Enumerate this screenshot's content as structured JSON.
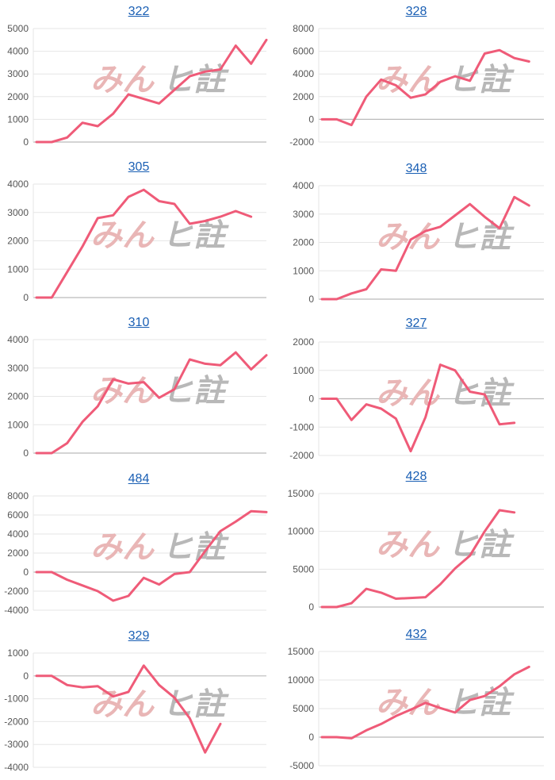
{
  "colors": {
    "line": "#ef5b78",
    "grid": "#e6e6e6",
    "axis": "#bbbbbb",
    "title": "#1a5fb4"
  },
  "watermark": {
    "part1": "みん",
    "part2": "ヒ註"
  },
  "chart_data": [
    {
      "type": "line",
      "title": "322",
      "yticks": [
        0,
        1000,
        2000,
        3000,
        4000,
        5000
      ],
      "ylim": [
        0,
        5000
      ],
      "series": [
        {
          "values": [
            0,
            0,
            200,
            850,
            700,
            1250,
            2100,
            1900,
            1700,
            2300,
            2900,
            3100,
            3200,
            4250,
            3450,
            4500
          ]
        }
      ]
    },
    {
      "type": "line",
      "title": "328",
      "yticks": [
        -2000,
        0,
        2000,
        4000,
        6000,
        8000
      ],
      "ylim": [
        -2000,
        8000
      ],
      "series": [
        {
          "values": [
            0,
            0,
            -500,
            2000,
            3500,
            3000,
            1900,
            2200,
            3300,
            3800,
            3400,
            5800,
            6100,
            5400,
            5100
          ]
        }
      ]
    },
    {
      "type": "line",
      "title": "305",
      "yticks": [
        0,
        1000,
        2000,
        3000,
        4000
      ],
      "ylim": [
        0,
        4000
      ],
      "series": [
        {
          "values": [
            0,
            0,
            900,
            1800,
            2800,
            2900,
            3550,
            3800,
            3400,
            3300,
            2600,
            2700,
            2850,
            3050,
            2850
          ]
        }
      ]
    },
    {
      "type": "line",
      "title": "348",
      "yticks": [
        0,
        1000,
        2000,
        3000,
        4000
      ],
      "ylim": [
        0,
        4000
      ],
      "series": [
        {
          "values": [
            0,
            0,
            200,
            350,
            1050,
            1000,
            2100,
            2400,
            2550,
            2950,
            3350,
            2900,
            2500,
            3600,
            3300
          ]
        }
      ]
    },
    {
      "type": "line",
      "title": "310",
      "yticks": [
        0,
        1000,
        2000,
        3000,
        4000
      ],
      "ylim": [
        0,
        4000
      ],
      "series": [
        {
          "values": [
            0,
            0,
            350,
            1100,
            1650,
            2600,
            2450,
            2500,
            1950,
            2250,
            3300,
            3150,
            3100,
            3550,
            2950,
            3450
          ]
        }
      ]
    },
    {
      "type": "line",
      "title": "327",
      "yticks": [
        -2000,
        -1000,
        0,
        1000,
        2000
      ],
      "ylim": [
        -2000,
        2000
      ],
      "series": [
        {
          "values": [
            0,
            0,
            -750,
            -200,
            -350,
            -700,
            -1850,
            -650,
            1200,
            1000,
            250,
            150,
            -900,
            -850
          ]
        }
      ]
    },
    {
      "type": "line",
      "title": "484",
      "yticks": [
        -4000,
        -2000,
        0,
        2000,
        4000,
        6000,
        8000
      ],
      "ylim": [
        -4000,
        8000
      ],
      "series": [
        {
          "values": [
            0,
            0,
            -800,
            -1400,
            -2000,
            -3000,
            -2500,
            -600,
            -1300,
            -200,
            0,
            2200,
            4300,
            5300,
            6400,
            6300
          ]
        }
      ]
    },
    {
      "type": "line",
      "title": "428",
      "yticks": [
        0,
        5000,
        10000,
        15000
      ],
      "ylim": [
        0,
        15000
      ],
      "series": [
        {
          "values": [
            0,
            0,
            500,
            2400,
            1900,
            1100,
            1200,
            1300,
            3000,
            5100,
            6800,
            10000,
            12800,
            12500
          ]
        }
      ]
    },
    {
      "type": "line",
      "title": "329",
      "yticks": [
        -4000,
        -3000,
        -2000,
        -1000,
        0,
        1000
      ],
      "ylim": [
        -4000,
        1000
      ],
      "series": [
        {
          "values": [
            0,
            0,
            -400,
            -500,
            -450,
            -900,
            -700,
            450,
            -400,
            -950,
            -1850,
            -3350,
            -2100
          ]
        }
      ]
    },
    {
      "type": "line",
      "title": "432",
      "yticks": [
        -5000,
        0,
        5000,
        10000,
        15000
      ],
      "ylim": [
        -5000,
        15000
      ],
      "series": [
        {
          "values": [
            0,
            0,
            -200,
            1200,
            2300,
            3700,
            4800,
            6000,
            5100,
            4300,
            6500,
            7200,
            8900,
            11000,
            12300
          ]
        }
      ]
    }
  ]
}
